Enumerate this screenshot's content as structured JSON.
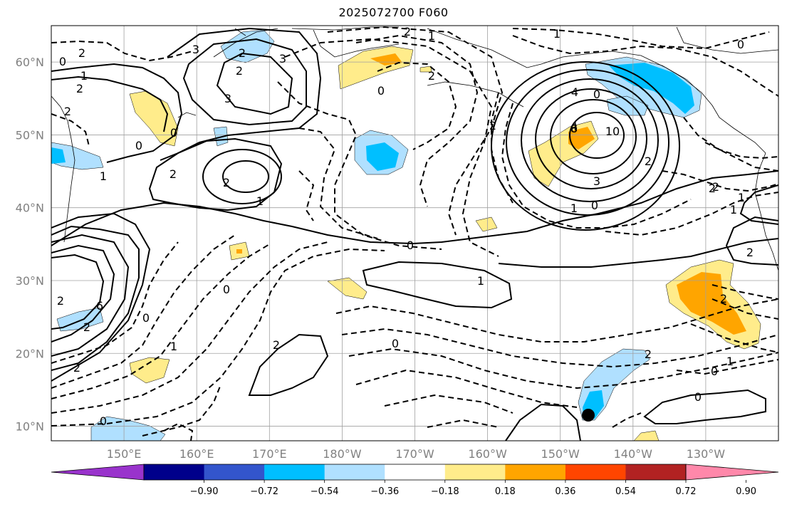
{
  "title": "2025072700 F060",
  "map": {
    "projection": "PlateCarree",
    "lon_range": [
      140,
      240
    ],
    "lat_range": [
      8,
      65
    ],
    "gridlines": true,
    "lat_labels": [
      "10°N",
      "20°N",
      "30°N",
      "40°N",
      "50°N",
      "60°N"
    ],
    "lon_labels": [
      "150°E",
      "160°E",
      "170°E",
      "180°W",
      "170°W",
      "160°W",
      "150°W",
      "140°W",
      "130°W"
    ],
    "contour_labels": [
      "2",
      "0",
      "1",
      "2",
      "2",
      "0",
      "0",
      "1",
      "2",
      "2",
      "1",
      "3",
      "2",
      "2",
      "3",
      "2",
      "3",
      "2",
      "6",
      "2",
      "0",
      "2",
      "2",
      "1",
      "2",
      "0",
      "0",
      "2",
      "1",
      "0",
      "4",
      "0",
      "1",
      "2",
      "4",
      "6",
      "8",
      "10",
      "2",
      "3",
      "1",
      "0",
      "1",
      "0",
      "2",
      "1",
      "2",
      "0",
      "0",
      "1",
      "0",
      "2",
      "0",
      "1",
      "2"
    ],
    "marker": {
      "lon": -146,
      "lat": 11.8,
      "color": "#000000"
    }
  },
  "colorbar": {
    "ticks": [
      "−0.90",
      "−0.72",
      "−0.54",
      "−0.36",
      "−0.18",
      "0.18",
      "0.36",
      "0.54",
      "0.72",
      "0.90"
    ],
    "colors": [
      "#9933cc",
      "#00008b",
      "#3355cc",
      "#00bfff",
      "#b0e0ff",
      "#ffffff",
      "#ffec8b",
      "#ffa500",
      "#ff4500",
      "#b22222",
      "#ff88aa"
    ]
  },
  "legend_colors": {
    "light_yellow": "#ffec8b",
    "orange": "#ffa500",
    "light_blue": "#b0e0ff",
    "cyan": "#00bfff"
  }
}
